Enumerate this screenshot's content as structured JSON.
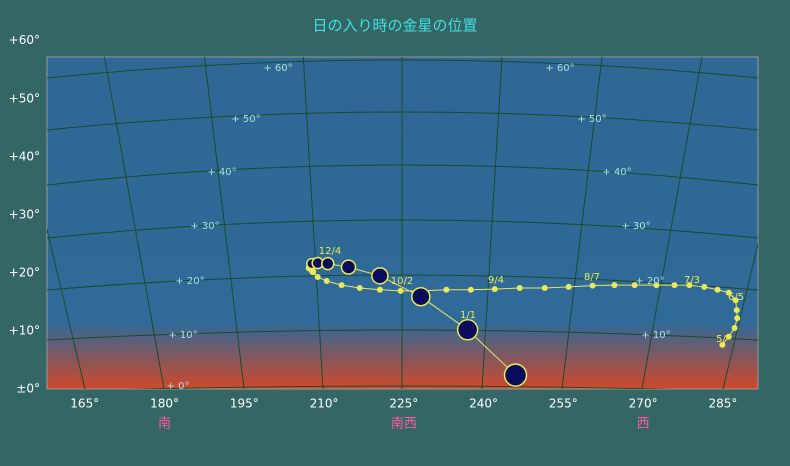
{
  "chart_data": {
    "type": "scatter",
    "title": "日の入り時の金星の位置",
    "xlim": [
      157.9,
      291.6
    ],
    "ylim": [
      0,
      57.2
    ],
    "xticks": [
      {
        "value": 165,
        "label": "165°"
      },
      {
        "value": 180,
        "label": "180°"
      },
      {
        "value": 195,
        "label": "195°"
      },
      {
        "value": 210,
        "label": "210°"
      },
      {
        "value": 225,
        "label": "225°"
      },
      {
        "value": 240,
        "label": "240°"
      },
      {
        "value": 255,
        "label": "255°"
      },
      {
        "value": 270,
        "label": "270°"
      },
      {
        "value": 285,
        "label": "285°"
      }
    ],
    "yticks": [
      {
        "value": 0,
        "label": "±0°"
      },
      {
        "value": 10,
        "label": "+10°"
      },
      {
        "value": 20,
        "label": "+20°"
      },
      {
        "value": 30,
        "label": "+30°"
      },
      {
        "value": 40,
        "label": "+40°"
      },
      {
        "value": 50,
        "label": "+50°"
      },
      {
        "value": 60,
        "label": "+60°"
      }
    ],
    "direction_labels": [
      {
        "value": 180,
        "label": "南"
      },
      {
        "value": 225,
        "label": "南西"
      },
      {
        "value": 270,
        "label": "西"
      }
    ],
    "altitude_labels": [
      "+ 60°",
      "+ 50°",
      "+ 40°",
      "+ 30°",
      "+ 20°",
      "+ 10°",
      "+ 0°"
    ],
    "date_labels": [
      "5/",
      "6/5",
      "7/3",
      "8/7",
      "9/4",
      "10/2",
      "12/4",
      "1/1"
    ],
    "color": "#e8e85a",
    "disk_color": "#0c0c5e",
    "x": [
      284.9,
      286.1,
      287.2,
      287.7,
      287.6,
      287.4,
      286.1,
      284.0,
      281.5,
      278.7,
      275.9,
      272.5,
      268.4,
      264.6,
      260.5,
      256.0,
      251.5,
      246.8,
      242.1,
      237.6,
      233.0,
      228.3,
      224.4,
      220.5,
      216.7,
      213.3,
      210.5,
      208.8,
      207.9,
      207.3,
      207.7,
      208.8,
      210.7,
      214.6,
      220.5,
      228.2,
      237.0,
      246.0
    ],
    "values": [
      7.6,
      9.0,
      10.5,
      12.2,
      13.6,
      15.3,
      16.6,
      17.1,
      17.6,
      17.9,
      17.9,
      17.9,
      17.9,
      17.9,
      17.8,
      17.6,
      17.4,
      17.4,
      17.2,
      17.1,
      17.1,
      16.9,
      16.9,
      17.1,
      17.4,
      17.9,
      18.6,
      19.3,
      20.2,
      20.9,
      21.6,
      21.7,
      21.6,
      21.0,
      19.5,
      15.9,
      10.2,
      2.4
    ],
    "sizes": [
      3,
      3,
      3,
      3,
      3,
      3,
      3,
      3,
      3,
      3,
      3,
      3,
      3,
      3,
      3,
      3,
      3,
      3,
      3,
      3,
      3,
      3,
      3,
      3,
      3,
      3,
      3,
      3,
      3.5,
      4,
      5,
      5.5,
      6,
      7,
      8,
      9,
      10,
      11
    ]
  }
}
